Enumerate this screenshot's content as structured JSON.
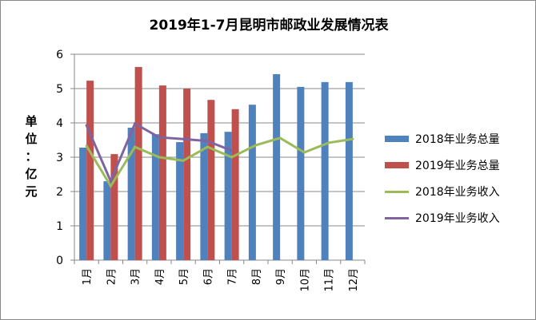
{
  "chart_data": {
    "type": "bar",
    "title": "2019年1-7月昆明市邮政业发展情况表",
    "ylabel": "单位：亿元",
    "xlabel": "",
    "ylim": [
      0,
      6
    ],
    "yticks": [
      "0",
      "1",
      "2",
      "3",
      "4",
      "5",
      "6"
    ],
    "grid": true,
    "legend_position": "right",
    "categories": [
      "1月",
      "2月",
      "3月",
      "4月",
      "5月",
      "6月",
      "7月",
      "8月",
      "9月",
      "10月",
      "11月",
      "12月"
    ],
    "series": [
      {
        "name": "2018年业务总量",
        "kind": "bar",
        "color": "#4F81BD",
        "values": [
          3.28,
          2.3,
          3.86,
          3.67,
          3.44,
          3.7,
          3.74,
          4.53,
          5.42,
          5.05,
          5.19,
          5.19
        ]
      },
      {
        "name": "2019年业务总量",
        "kind": "bar",
        "color": "#C0504D",
        "values": [
          5.23,
          3.09,
          5.63,
          5.09,
          5.0,
          4.67,
          4.4,
          null,
          null,
          null,
          null,
          null
        ]
      },
      {
        "name": "2018年业务收入",
        "kind": "line",
        "color": "#9BBB59",
        "values": [
          3.33,
          2.16,
          3.3,
          3.0,
          2.9,
          3.3,
          3.0,
          3.35,
          3.56,
          3.14,
          3.42,
          3.53
        ]
      },
      {
        "name": "2019年业务收入",
        "kind": "line",
        "color": "#8064A2",
        "values": [
          3.93,
          2.3,
          3.98,
          3.58,
          3.53,
          3.47,
          3.19,
          null,
          null,
          null,
          null,
          null
        ]
      }
    ]
  }
}
